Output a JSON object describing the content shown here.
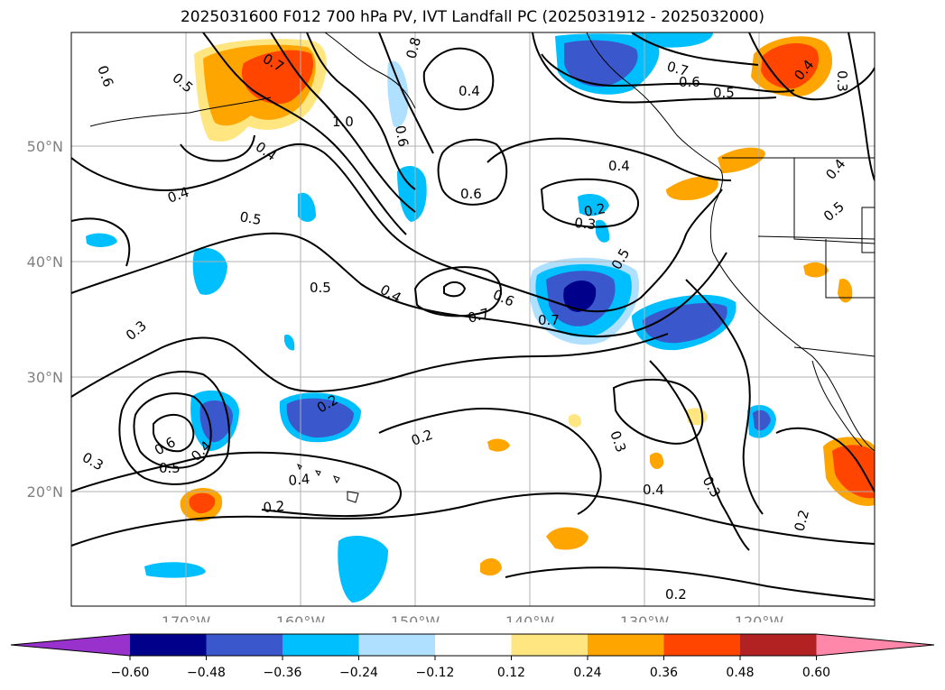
{
  "title": "2025031600 F012 700 hPa PV, IVT Landfall PC (2025031912 - 2025032000)",
  "map": {
    "lon_labels": [
      "170°W",
      "160°W",
      "150°W",
      "140°W",
      "130°W",
      "120°W"
    ],
    "lat_labels": [
      "50°N",
      "40°N",
      "30°N",
      "20°N"
    ],
    "gridline_color": "#b0b0b0",
    "coast_color": "#000000",
    "contour_labels": [
      "0.6",
      "0.5",
      "0.7",
      "0.8",
      "0.7",
      "0.6",
      "0.5",
      "0.4",
      "0.3",
      "0.4",
      "1.0",
      "0.6",
      "0.4",
      "0.4",
      "0.5",
      "0.6",
      "0.2",
      "0.3",
      "0.4",
      "0.5",
      "0.4",
      "0.5",
      "0.4",
      "0.6",
      "0.7",
      "0.7",
      "0.5",
      "0.3",
      "0.2",
      "0.6",
      "0.5",
      "0.4",
      "0.3",
      "0.2",
      "0.4",
      "0.2",
      "0.3",
      "0.4",
      "0.3",
      "0.2",
      "0.2"
    ]
  },
  "colorbar": {
    "colors": [
      "#9932cc",
      "#00008b",
      "#3a58cc",
      "#00bfff",
      "#b0e0ff",
      "#ffffff",
      "#ffe680",
      "#ffa500",
      "#ff4500",
      "#b22222",
      "#ff88aa"
    ],
    "tick_labels": [
      "−0.60",
      "−0.48",
      "−0.36",
      "−0.24",
      "−0.12",
      "0.12",
      "0.24",
      "0.36",
      "0.48",
      "0.60"
    ]
  }
}
